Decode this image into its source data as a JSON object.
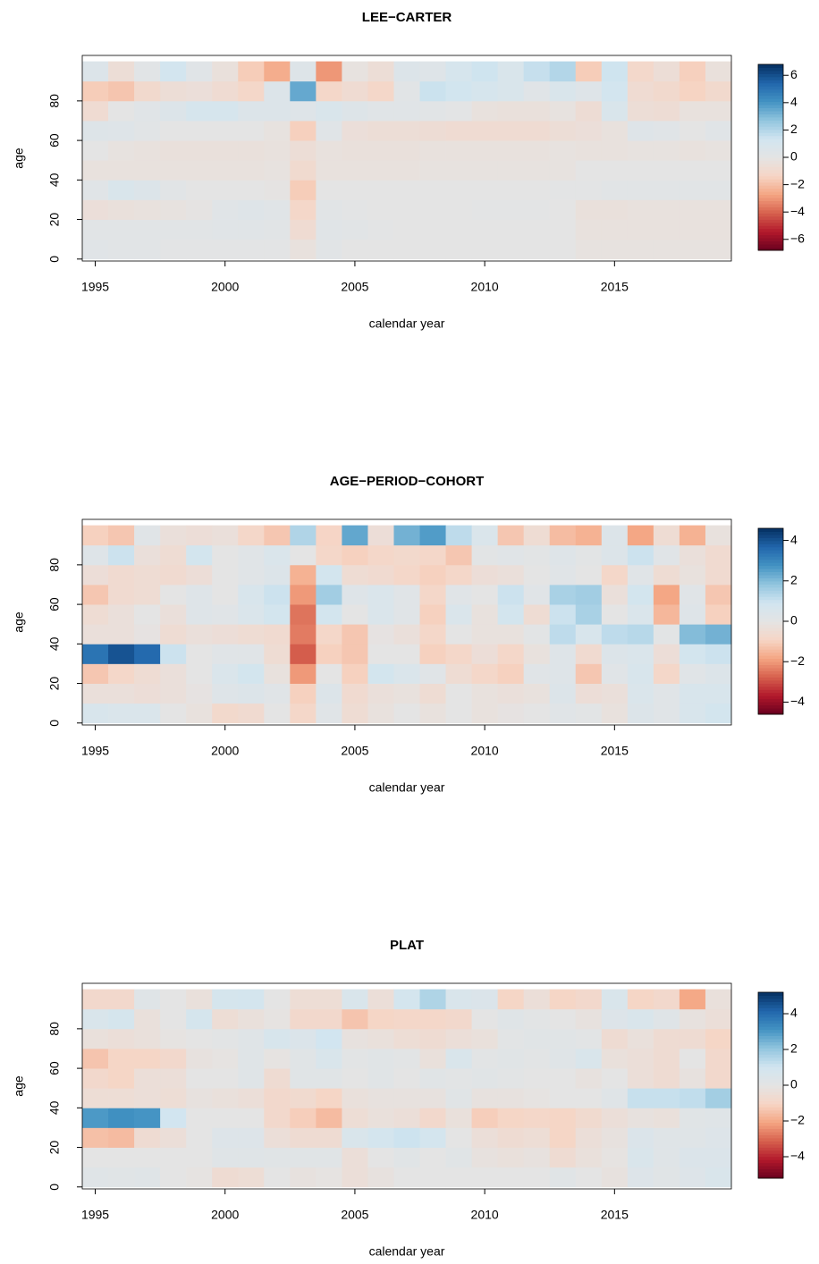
{
  "chart_data": [
    {
      "type": "heatmap",
      "title": "LEE−CARTER",
      "x_label": "calendar year",
      "y_label": "age",
      "x": [
        1995,
        1996,
        1997,
        1998,
        1999,
        2000,
        2001,
        2002,
        2003,
        2004,
        2005,
        2006,
        2007,
        2008,
        2009,
        2010,
        2011,
        2012,
        2013,
        2014,
        2015,
        2016,
        2017,
        2018,
        2019
      ],
      "y": [
        5,
        15,
        25,
        35,
        45,
        55,
        65,
        75,
        85,
        95
      ],
      "values": [
        [
          0.3,
          0.2,
          0.2,
          0.1,
          0.1,
          0.1,
          0.1,
          0.1,
          -0.3,
          0.2,
          0,
          0,
          0,
          0,
          0,
          0,
          0,
          0,
          0,
          -0.2,
          -0.2,
          -0.2,
          -0.2,
          -0.2,
          -0.2
        ],
        [
          0.2,
          0.2,
          0.2,
          0.2,
          0.2,
          0.3,
          0.3,
          0.2,
          -0.8,
          0.3,
          0.2,
          0.1,
          0,
          0,
          0,
          0,
          0,
          0,
          0,
          -0.3,
          -0.3,
          -0.3,
          -0.3,
          -0.3,
          -0.3
        ],
        [
          -0.5,
          -0.4,
          -0.3,
          -0.2,
          -0.1,
          0.3,
          0.4,
          0.3,
          -1.2,
          0.2,
          0.1,
          0,
          0,
          0,
          0,
          0.1,
          0.1,
          0.1,
          0,
          -0.4,
          -0.4,
          -0.3,
          -0.3,
          -0.3,
          -0.3
        ],
        [
          0.3,
          0.8,
          0.6,
          0.2,
          0,
          0,
          0,
          -0.1,
          -1.6,
          0,
          0,
          0,
          0,
          0,
          0,
          0,
          0,
          0,
          0.1,
          0.1,
          0.2,
          0.2,
          0.2,
          0.2,
          0.2
        ],
        [
          -0.3,
          -0.3,
          -0.3,
          -0.3,
          -0.3,
          -0.3,
          -0.3,
          -0.2,
          -0.9,
          -0.3,
          -0.3,
          -0.3,
          -0.3,
          -0.2,
          -0.2,
          -0.2,
          -0.2,
          -0.2,
          -0.2,
          0,
          0,
          0,
          0,
          0,
          0
        ],
        [
          0,
          -0.2,
          -0.3,
          -0.4,
          -0.4,
          -0.4,
          -0.4,
          -0.3,
          -0.6,
          -0.3,
          -0.4,
          -0.4,
          -0.4,
          -0.3,
          -0.3,
          -0.3,
          -0.3,
          -0.3,
          -0.2,
          -0.3,
          -0.3,
          -0.2,
          -0.2,
          -0.3,
          -0.2
        ],
        [
          0.5,
          0.4,
          0.2,
          0,
          0,
          0,
          0,
          -0.2,
          -1.5,
          0.3,
          -0.5,
          -0.6,
          -0.6,
          -0.7,
          -0.8,
          -0.8,
          -0.8,
          -0.8,
          -0.6,
          -0.5,
          -0.3,
          0.4,
          0.3,
          0,
          0.3
        ],
        [
          -0.8,
          0,
          0.3,
          0.6,
          1,
          1,
          0.6,
          0.6,
          0.4,
          0.8,
          0.5,
          0.3,
          0.3,
          0.2,
          0.1,
          -0.3,
          -0.4,
          -0.4,
          -0.2,
          -0.7,
          0.8,
          -0.6,
          -0.7,
          -0.3,
          -0.3
        ],
        [
          -1.6,
          -1.8,
          -1,
          -0.6,
          -0.5,
          -0.8,
          -1.2,
          0.6,
          3.5,
          -1.2,
          -0.8,
          -1.2,
          0.2,
          1.5,
          1.3,
          1,
          0.8,
          0.3,
          0.8,
          0.4,
          1.2,
          -0.8,
          -1,
          -1.4,
          -1
        ],
        [
          0.6,
          -0.6,
          0.2,
          1.2,
          0.3,
          -0.4,
          -1.6,
          -2.5,
          0.5,
          -3,
          -0.2,
          -0.6,
          0.6,
          0.4,
          1,
          1.4,
          0.8,
          1.6,
          2,
          -1.6,
          1.4,
          -1.1,
          -0.6,
          -1.5,
          -0.4
        ]
      ],
      "xlim": [
        1994.5,
        2019.5
      ],
      "xticks": [
        1995,
        2000,
        2005,
        2010,
        2015
      ],
      "ylim": [
        -1,
        103
      ],
      "yticks": [
        0,
        20,
        40,
        60,
        80
      ],
      "zlim": [
        -6.8,
        6.8
      ],
      "zticks": [
        {
          "value": -6,
          "label": "−6"
        },
        {
          "value": -4,
          "label": "−4"
        },
        {
          "value": -2,
          "label": "−2"
        },
        0,
        2,
        4,
        6
      ],
      "colorscale": [
        "#67001f",
        "#b2182b",
        "#d6604d",
        "#f4a582",
        "#f6d5c5",
        "#e4e4e4",
        "#d1e5f0",
        "#92c5de",
        "#4393c3",
        "#2166ac",
        "#053061"
      ]
    },
    {
      "type": "heatmap",
      "title": "AGE−PERIOD−COHORT",
      "x_label": "calendar year",
      "y_label": "age",
      "x": [
        1995,
        1996,
        1997,
        1998,
        1999,
        2000,
        2001,
        2002,
        2003,
        2004,
        2005,
        2006,
        2007,
        2008,
        2009,
        2010,
        2011,
        2012,
        2013,
        2014,
        2015,
        2016,
        2017,
        2018,
        2019
      ],
      "y": [
        5,
        15,
        25,
        35,
        45,
        55,
        65,
        75,
        85,
        95
      ],
      "values": [
        [
          0.6,
          0.5,
          0.5,
          0,
          -0.2,
          -0.7,
          -0.6,
          0,
          -0.8,
          0.2,
          -0.5,
          -0.2,
          0,
          -0.2,
          0,
          -0.2,
          -0.1,
          0,
          0.2,
          0.1,
          -0.2,
          0.4,
          0.2,
          0.6,
          0.8
        ],
        [
          -0.3,
          -0.3,
          -0.4,
          -0.3,
          -0.1,
          0.3,
          0.4,
          0.2,
          -1,
          0.4,
          -0.6,
          -0.3,
          -0.2,
          -0.5,
          0,
          -0.2,
          -0.3,
          -0.2,
          0.4,
          -0.4,
          -0.3,
          0.5,
          0.2,
          0.6,
          0.6
        ],
        [
          -1.2,
          -0.8,
          -0.5,
          -0.3,
          0,
          0.5,
          0.8,
          -0.2,
          -2,
          0,
          -1,
          0.8,
          0.5,
          0.2,
          -0.5,
          -0.8,
          -1,
          0.2,
          0.3,
          -1.2,
          0.2,
          0.6,
          -0.8,
          0.2,
          0.4
        ],
        [
          3.4,
          4,
          3.6,
          1,
          0,
          0.2,
          0.2,
          -0.5,
          -2.8,
          -1,
          -1.2,
          0,
          0,
          -1,
          -0.8,
          -0.4,
          -0.8,
          -0.2,
          0.3,
          -0.6,
          0.4,
          0.5,
          -0.4,
          0.8,
          1
        ],
        [
          -0.3,
          -0.3,
          -0.1,
          -0.5,
          -0.3,
          -0.4,
          -0.5,
          -0.6,
          -2.4,
          -0.8,
          -1.2,
          -0.1,
          -0.3,
          -0.8,
          0,
          -0.2,
          -0.2,
          0.1,
          1.2,
          0.6,
          1.2,
          1.3,
          0.1,
          2,
          2.2
        ],
        [
          -0.5,
          -0.3,
          0,
          -0.3,
          0.3,
          0.2,
          0.5,
          0.8,
          -2.5,
          0.8,
          0,
          0.5,
          0.2,
          -1,
          0.5,
          -0.2,
          0.8,
          -0.5,
          1,
          1.5,
          0,
          0.5,
          -1.5,
          0.3,
          -1
        ],
        [
          -1.2,
          -0.6,
          -0.5,
          0,
          0.3,
          0,
          0.6,
          1,
          -2,
          1.6,
          0.3,
          0.5,
          0.2,
          -0.8,
          0.2,
          0,
          1,
          0.2,
          1.5,
          1.6,
          -0.3,
          0.8,
          -1.8,
          0.2,
          -1.2
        ],
        [
          -0.4,
          -0.6,
          -0.5,
          -0.6,
          -0.4,
          0,
          0.2,
          0.4,
          -1.6,
          0.8,
          -0.5,
          -0.6,
          -0.8,
          -1,
          -0.8,
          -0.4,
          -0.3,
          0,
          0.2,
          0,
          -0.8,
          0.2,
          -0.5,
          -0.2,
          -0.6
        ],
        [
          0.3,
          1,
          -0.3,
          -0.5,
          0.8,
          0,
          0.2,
          0.5,
          0,
          -0.8,
          -1,
          -0.8,
          -0.7,
          -0.8,
          -1.2,
          0.1,
          0.2,
          0.1,
          0.3,
          0.1,
          0.4,
          1,
          0.2,
          -0.3,
          -0.6
        ],
        [
          -1,
          -1.2,
          0.2,
          -0.3,
          -0.4,
          -0.3,
          -0.8,
          -1.2,
          1.4,
          -0.9,
          2.4,
          -0.4,
          2.2,
          2.6,
          1.2,
          0.5,
          -1.2,
          -0.5,
          -1.4,
          -1.6,
          0.4,
          -1.8,
          -0.5,
          -1.6,
          -0.2
        ]
      ],
      "xlim": [
        1994.5,
        2019.5
      ],
      "xticks": [
        1995,
        2000,
        2005,
        2010,
        2015
      ],
      "ylim": [
        -1,
        103
      ],
      "yticks": [
        0,
        20,
        40,
        60,
        80
      ],
      "zlim": [
        -4.6,
        4.6
      ],
      "zticks": [
        {
          "value": -4,
          "label": "−4"
        },
        {
          "value": -2,
          "label": "−2"
        },
        0,
        2,
        4
      ],
      "colorscale": [
        "#67001f",
        "#b2182b",
        "#d6604d",
        "#f4a582",
        "#f6d5c5",
        "#e4e4e4",
        "#d1e5f0",
        "#92c5de",
        "#4393c3",
        "#2166ac",
        "#053061"
      ]
    },
    {
      "type": "heatmap",
      "title": "PLAT",
      "x_label": "calendar year",
      "y_label": "age",
      "x": [
        1995,
        1996,
        1997,
        1998,
        1999,
        2000,
        2001,
        2002,
        2003,
        2004,
        2005,
        2006,
        2007,
        2008,
        2009,
        2010,
        2011,
        2012,
        2013,
        2014,
        2015,
        2016,
        2017,
        2018,
        2019
      ],
      "y": [
        5,
        15,
        25,
        35,
        45,
        55,
        65,
        75,
        85,
        95
      ],
      "values": [
        [
          0.3,
          0.2,
          0.3,
          0,
          -0.1,
          -0.6,
          -0.5,
          0,
          -0.2,
          -0.1,
          -0.4,
          -0.2,
          0,
          0,
          0,
          0,
          0,
          0,
          0.2,
          0,
          -0.2,
          0.4,
          0.2,
          0.4,
          0.6
        ],
        [
          0,
          0,
          0,
          0,
          0,
          0.3,
          0.3,
          0.2,
          0.2,
          0.2,
          -0.4,
          0,
          0.2,
          0,
          0.2,
          -0.2,
          -0.3,
          -0.2,
          -0.6,
          -0.3,
          -0.1,
          0.6,
          0.3,
          0.5,
          0.5
        ],
        [
          -1.5,
          -1.6,
          -0.6,
          -0.4,
          0,
          0.4,
          0.4,
          -0.4,
          -0.6,
          -0.6,
          0.6,
          0.9,
          1.1,
          0.9,
          0,
          -0.4,
          -0.6,
          -0.5,
          -1,
          -0.4,
          -0.2,
          0.5,
          0.3,
          0.3,
          0.4
        ],
        [
          3,
          3.2,
          3.1,
          1,
          0,
          0,
          0,
          -0.8,
          -1.2,
          -1.6,
          -0.5,
          -0.3,
          -0.4,
          -0.8,
          -0.3,
          -1.2,
          -1,
          -0.9,
          -1,
          -0.7,
          -0.4,
          -0.2,
          -0.3,
          0.2,
          0.3
        ],
        [
          -0.5,
          -0.5,
          -0.4,
          -0.5,
          -0.2,
          -0.3,
          -0.4,
          -0.8,
          -0.7,
          -1,
          -0.3,
          -0.2,
          -0.2,
          -0.2,
          0.2,
          -0.2,
          -0.2,
          -0.1,
          0,
          0,
          0.3,
          1.2,
          1.2,
          1.3,
          1.8
        ],
        [
          -0.8,
          -1,
          -0.4,
          -0.4,
          0,
          0,
          0.3,
          -0.6,
          0.2,
          0.2,
          0,
          0.2,
          0,
          0.2,
          0.1,
          0.2,
          0.1,
          0,
          0,
          -0.2,
          0,
          -0.4,
          -0.6,
          -0.2,
          -0.8
        ],
        [
          -1.4,
          -1,
          -1,
          -0.8,
          -0.2,
          -0.1,
          0.3,
          -0.1,
          0.2,
          0.6,
          0.1,
          0.2,
          0.1,
          -0.3,
          0.6,
          0.1,
          0.2,
          0.1,
          0.3,
          0.6,
          -0.3,
          -0.4,
          -0.6,
          0,
          -0.8
        ],
        [
          -0.3,
          -0.4,
          -0.3,
          -0.1,
          0,
          0.1,
          0.3,
          0.7,
          0.5,
          1,
          -0.2,
          -0.3,
          -0.5,
          -0.6,
          -0.4,
          -0.3,
          0.1,
          0.2,
          0.2,
          0.1,
          -0.6,
          -0.3,
          -0.6,
          -0.6,
          -1
        ],
        [
          0.6,
          0.8,
          -0.3,
          0,
          0.8,
          -0.5,
          -0.3,
          -0.1,
          -0.8,
          -0.8,
          -1.4,
          -1,
          -0.9,
          -0.9,
          -0.8,
          0,
          0.3,
          0.1,
          0,
          -0.2,
          0.4,
          0.6,
          0.3,
          -0.2,
          -0.4
        ],
        [
          -0.8,
          -0.8,
          0.3,
          0,
          -0.3,
          0.8,
          0.9,
          0,
          -0.5,
          -0.5,
          0.6,
          -0.4,
          0.9,
          1.6,
          0.6,
          0.5,
          -1,
          -0.4,
          -1,
          -0.8,
          0.6,
          -1,
          -0.8,
          -2,
          -0.3
        ]
      ],
      "xlim": [
        1994.5,
        2019.5
      ],
      "xticks": [
        1995,
        2000,
        2005,
        2010,
        2015
      ],
      "ylim": [
        -1,
        103
      ],
      "yticks": [
        0,
        20,
        40,
        60,
        80
      ],
      "zlim": [
        -5.2,
        5.2
      ],
      "zticks": [
        {
          "value": -4,
          "label": "−4"
        },
        {
          "value": -2,
          "label": "−2"
        },
        0,
        2,
        4
      ],
      "colorscale": [
        "#67001f",
        "#b2182b",
        "#d6604d",
        "#f4a582",
        "#f6d5c5",
        "#e4e4e4",
        "#d1e5f0",
        "#92c5de",
        "#4393c3",
        "#2166ac",
        "#053061"
      ]
    }
  ]
}
